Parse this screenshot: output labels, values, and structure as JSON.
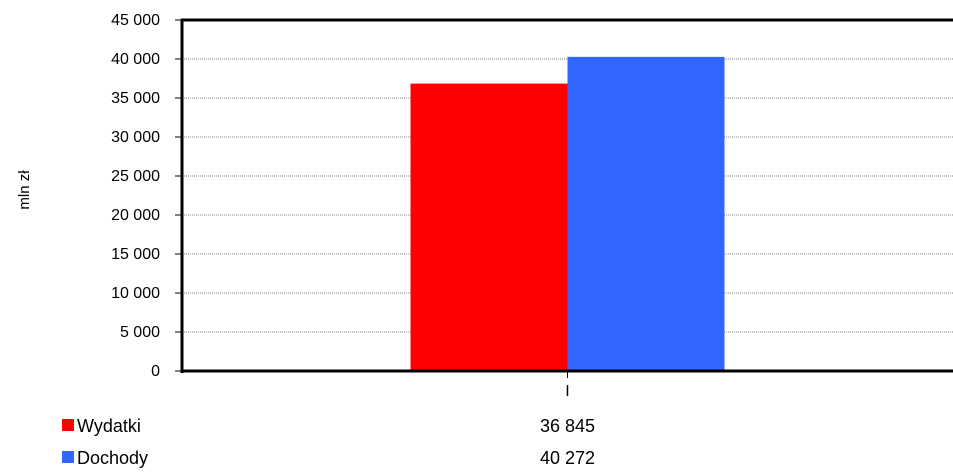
{
  "chart_data": {
    "type": "bar",
    "categories": [
      "I"
    ],
    "series": [
      {
        "name": "Wydatki",
        "values": [
          36845
        ],
        "value_label": "36 845",
        "color": "#ff0000"
      },
      {
        "name": "Dochody",
        "values": [
          40272
        ],
        "value_label": "40 272",
        "color": "#3366ff"
      }
    ],
    "xlabel": "",
    "ylabel": "mln zł",
    "ylim": [
      0,
      45000
    ],
    "y_ticks": [
      0,
      5000,
      10000,
      15000,
      20000,
      25000,
      30000,
      35000,
      40000,
      45000
    ],
    "y_tick_labels": [
      "0",
      "5 000",
      "10 000",
      "15 000",
      "20 000",
      "25 000",
      "30 000",
      "35 000",
      "40 000",
      "45 000"
    ],
    "grid": true,
    "legend": "data-table-below"
  }
}
